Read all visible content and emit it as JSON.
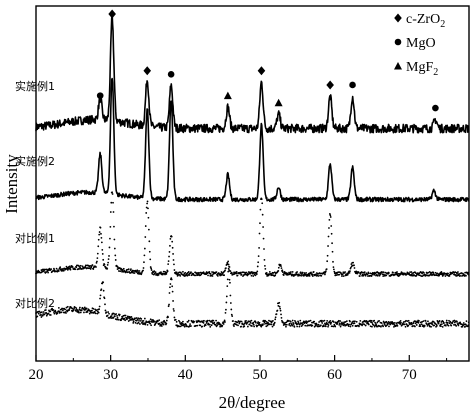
{
  "chart_data": {
    "type": "line",
    "title": "",
    "xlabel": "2θ/degree",
    "ylabel": "Intensity",
    "xlim": [
      20,
      78
    ],
    "xticks": [
      20,
      30,
      40,
      50,
      60,
      70
    ],
    "grid": false,
    "legend_position": "top-right",
    "legend": [
      {
        "symbol": "diamond",
        "label": "c-ZrO",
        "sub": "2"
      },
      {
        "symbol": "circle",
        "label": "MgO",
        "sub": ""
      },
      {
        "symbol": "triangle",
        "label": "MgF",
        "sub": "2"
      }
    ],
    "series": [
      {
        "name": "实施例1",
        "line_style": "solid",
        "baseline": 0.655,
        "noise": 0.012,
        "bump": {
          "center": 28,
          "width": 6,
          "height": 0.025
        },
        "peaks": [
          {
            "x": 28.6,
            "h": 0.06
          },
          {
            "x": 30.2,
            "h": 0.29
          },
          {
            "x": 34.9,
            "h": 0.13
          },
          {
            "x": 38.1,
            "h": 0.12
          },
          {
            "x": 45.7,
            "h": 0.06
          },
          {
            "x": 50.2,
            "h": 0.13
          },
          {
            "x": 52.5,
            "h": 0.04
          },
          {
            "x": 59.4,
            "h": 0.09
          },
          {
            "x": 62.4,
            "h": 0.09
          },
          {
            "x": 73.5,
            "h": 0.025
          }
        ],
        "markers": [
          {
            "x": 28.6,
            "symbol": "circle"
          },
          {
            "x": 30.2,
            "symbol": "diamond"
          },
          {
            "x": 34.9,
            "symbol": "diamond"
          },
          {
            "x": 38.1,
            "symbol": "circle"
          },
          {
            "x": 45.7,
            "symbol": "triangle"
          },
          {
            "x": 50.2,
            "symbol": "diamond"
          },
          {
            "x": 52.5,
            "symbol": "triangle"
          },
          {
            "x": 59.4,
            "symbol": "diamond"
          },
          {
            "x": 62.4,
            "symbol": "circle"
          },
          {
            "x": 73.5,
            "symbol": "circle"
          }
        ]
      },
      {
        "name": "实施例2",
        "line_style": "solid",
        "baseline": 0.455,
        "noise": 0.006,
        "bump": {
          "center": 27,
          "width": 6,
          "height": 0.02
        },
        "peaks": [
          {
            "x": 28.6,
            "h": 0.11
          },
          {
            "x": 30.2,
            "h": 0.33
          },
          {
            "x": 34.9,
            "h": 0.25
          },
          {
            "x": 38.1,
            "h": 0.28
          },
          {
            "x": 45.7,
            "h": 0.07
          },
          {
            "x": 50.2,
            "h": 0.21
          },
          {
            "x": 52.5,
            "h": 0.035
          },
          {
            "x": 59.4,
            "h": 0.1
          },
          {
            "x": 62.4,
            "h": 0.09
          },
          {
            "x": 73.3,
            "h": 0.025
          }
        ],
        "markers": []
      },
      {
        "name": "对比例1",
        "line_style": "dotted",
        "baseline": 0.245,
        "noise": 0.006,
        "bump": {
          "center": 27,
          "width": 6,
          "height": 0.02
        },
        "peaks": [
          {
            "x": 28.6,
            "h": 0.11
          },
          {
            "x": 30.2,
            "h": 0.22
          },
          {
            "x": 34.9,
            "h": 0.2
          },
          {
            "x": 38.1,
            "h": 0.11
          },
          {
            "x": 45.7,
            "h": 0.03
          },
          {
            "x": 50.2,
            "h": 0.22
          },
          {
            "x": 52.7,
            "h": 0.025
          },
          {
            "x": 59.4,
            "h": 0.17
          },
          {
            "x": 62.4,
            "h": 0.03
          }
        ],
        "markers": []
      },
      {
        "name": "对比例2",
        "line_style": "dotted",
        "baseline": 0.105,
        "noise": 0.009,
        "bump": {
          "center": 25,
          "width": 7,
          "height": 0.04
        },
        "peaks": [
          {
            "x": 28.9,
            "h": 0.09
          },
          {
            "x": 38.1,
            "h": 0.13
          },
          {
            "x": 45.8,
            "h": 0.15
          },
          {
            "x": 52.5,
            "h": 0.06
          }
        ],
        "markers": []
      }
    ]
  }
}
